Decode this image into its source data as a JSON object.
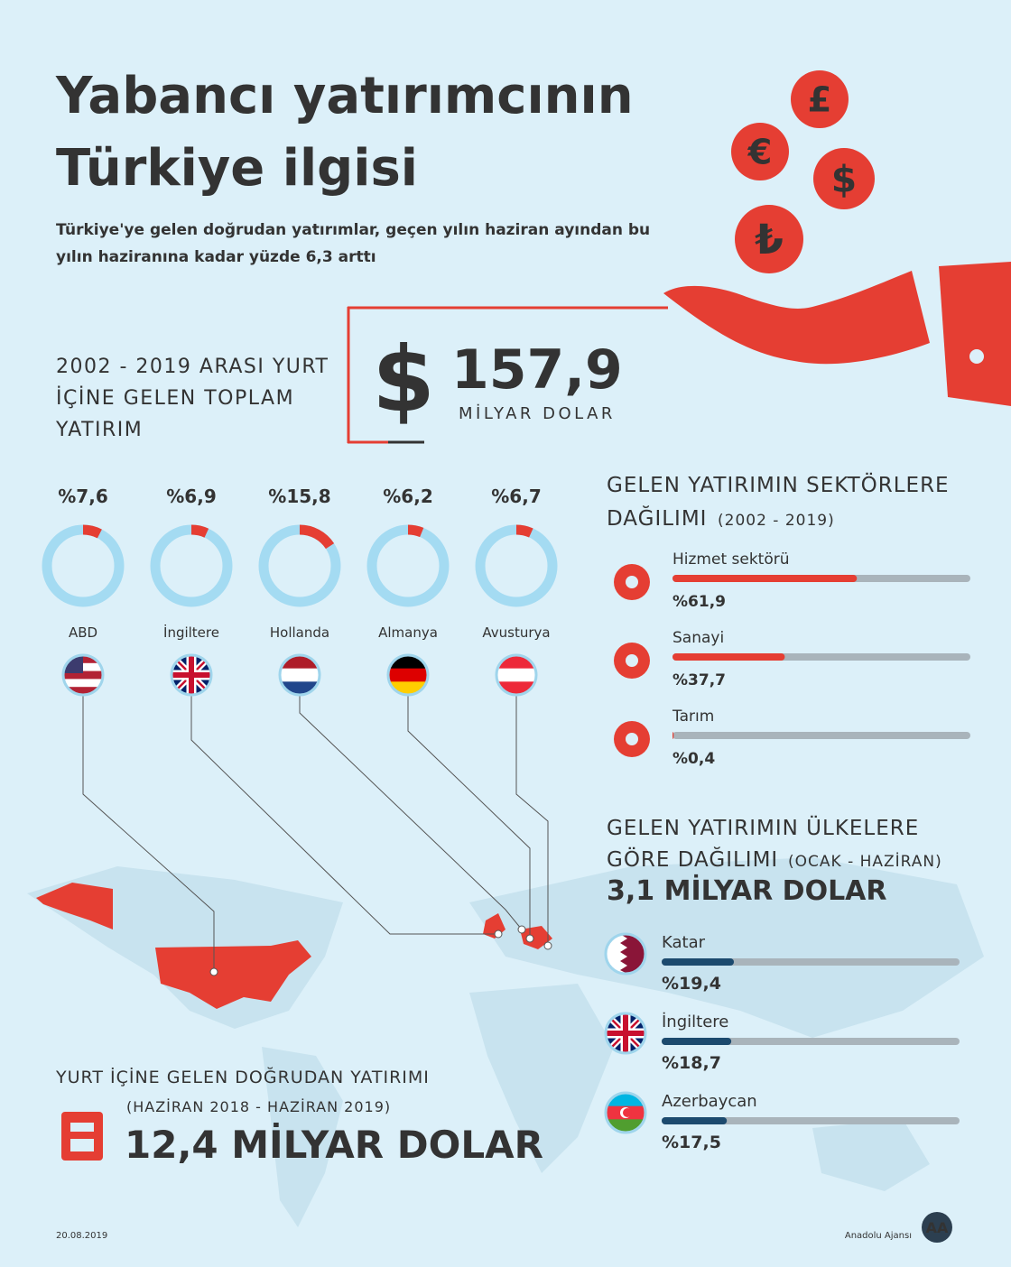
{
  "header": {
    "title_line1": "Yabancı yatırımcının",
    "title_line2": "Türkiye ilgisi",
    "subtitle_lines": [
      "Türkiye'ye gelen doğrudan yatırımlar, geçen yılın haziran ayından bu",
      "yılın haziranına kadar yüzde 6,3 arttı"
    ],
    "currency_icons": [
      "£",
      "€",
      "$",
      "₺"
    ]
  },
  "total": {
    "label_lines": [
      "2002 - 2019 ARASI YURT",
      "İÇİNE GELEN TOPLAM",
      "YATIRIM"
    ],
    "currency": "$",
    "amount": "157,9",
    "unit": "MİLYAR DOLAR"
  },
  "donuts": {
    "lim": [
      0,
      100
    ],
    "items": [
      {
        "country": "ABD",
        "value": 7.6,
        "label": "%7,6"
      },
      {
        "country": "İngiltere",
        "value": 6.9,
        "label": "%6,9"
      },
      {
        "country": "Hollanda",
        "value": 15.8,
        "label": "%15,8"
      },
      {
        "country": "Almanya",
        "value": 6.2,
        "label": "%6,2"
      },
      {
        "country": "Avusturya",
        "value": 6.7,
        "label": "%6,7"
      }
    ]
  },
  "sectors": {
    "title_lines": [
      "GELEN YATIRIMIN SEKTÖRLERE",
      "DAĞILIMI"
    ],
    "period": "(2002 - 2019)",
    "xlim": [
      0,
      100
    ],
    "items": [
      {
        "name": "Hizmet sektörü",
        "value": 61.9,
        "label": "%61,9"
      },
      {
        "name": "Sanayi",
        "value": 37.7,
        "label": "%37,7"
      },
      {
        "name": "Tarım",
        "value": 0.4,
        "label": "%0,4"
      }
    ]
  },
  "countries": {
    "title_lines": [
      "GELEN YATIRIMIN ÜLKELERE",
      "GÖRE DAĞILIMI"
    ],
    "period": "(OCAK - HAZİRAN)",
    "total": "3,1 MİLYAR DOLAR",
    "xlim": [
      0,
      80
    ],
    "items": [
      {
        "name": "Katar",
        "value": 19.4,
        "label": "%19,4"
      },
      {
        "name": "İngiltere",
        "value": 18.7,
        "label": "%18,7"
      },
      {
        "name": "Azerbaycan",
        "value": 17.5,
        "label": "%17,5"
      }
    ]
  },
  "fdi": {
    "title": "YURT İÇİNE GELEN DOĞRUDAN YATIRIMI",
    "period": "(HAZİRAN 2018 - HAZİRAN 2019)",
    "amount": "12,4 MİLYAR DOLAR"
  },
  "footer": {
    "date": "20.08.2019",
    "source": "Anadolu Ajansı",
    "logo": "AA"
  }
}
